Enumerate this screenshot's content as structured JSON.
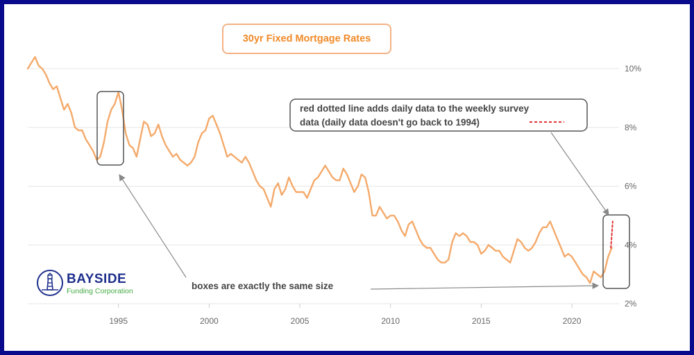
{
  "chart_data": {
    "type": "line",
    "title": "30yr Fixed Mortgage Rates",
    "x_ticks": [
      "1995",
      "2000",
      "2005",
      "2010",
      "2015",
      "2020"
    ],
    "y_ticks": [
      "2%",
      "4%",
      "6%",
      "8%",
      "10%"
    ],
    "xlim": [
      1990.0,
      2022.6
    ],
    "ylim": [
      2.0,
      10.0
    ],
    "grid": true,
    "series": [
      {
        "color": "#f4a96a",
        "points": [
          [
            1990.0,
            10.0
          ],
          [
            1990.2,
            10.2
          ],
          [
            1990.4,
            10.4
          ],
          [
            1990.6,
            10.1
          ],
          [
            1990.8,
            10.0
          ],
          [
            1991.0,
            9.8
          ],
          [
            1991.2,
            9.5
          ],
          [
            1991.4,
            9.3
          ],
          [
            1991.6,
            9.4
          ],
          [
            1991.8,
            9.0
          ],
          [
            1992.0,
            8.6
          ],
          [
            1992.2,
            8.8
          ],
          [
            1992.4,
            8.5
          ],
          [
            1992.6,
            8.0
          ],
          [
            1992.8,
            7.9
          ],
          [
            1993.0,
            7.9
          ],
          [
            1993.2,
            7.6
          ],
          [
            1993.4,
            7.4
          ],
          [
            1993.6,
            7.2
          ],
          [
            1993.8,
            6.9
          ],
          [
            1994.0,
            7.0
          ],
          [
            1994.2,
            7.5
          ],
          [
            1994.4,
            8.2
          ],
          [
            1994.6,
            8.6
          ],
          [
            1994.8,
            8.8
          ],
          [
            1995.0,
            9.2
          ],
          [
            1995.2,
            8.6
          ],
          [
            1995.4,
            7.8
          ],
          [
            1995.6,
            7.4
          ],
          [
            1995.8,
            7.3
          ],
          [
            1996.0,
            7.0
          ],
          [
            1996.2,
            7.6
          ],
          [
            1996.4,
            8.2
          ],
          [
            1996.6,
            8.1
          ],
          [
            1996.8,
            7.7
          ],
          [
            1997.0,
            7.8
          ],
          [
            1997.2,
            8.1
          ],
          [
            1997.4,
            7.7
          ],
          [
            1997.6,
            7.4
          ],
          [
            1997.8,
            7.2
          ],
          [
            1998.0,
            7.0
          ],
          [
            1998.2,
            7.1
          ],
          [
            1998.4,
            6.9
          ],
          [
            1998.6,
            6.8
          ],
          [
            1998.8,
            6.7
          ],
          [
            1999.0,
            6.8
          ],
          [
            1999.2,
            7.0
          ],
          [
            1999.4,
            7.5
          ],
          [
            1999.6,
            7.8
          ],
          [
            1999.8,
            7.9
          ],
          [
            2000.0,
            8.3
          ],
          [
            2000.2,
            8.4
          ],
          [
            2000.4,
            8.1
          ],
          [
            2000.6,
            7.8
          ],
          [
            2000.8,
            7.4
          ],
          [
            2001.0,
            7.0
          ],
          [
            2001.2,
            7.1
          ],
          [
            2001.4,
            7.0
          ],
          [
            2001.6,
            6.9
          ],
          [
            2001.8,
            6.8
          ],
          [
            2002.0,
            7.0
          ],
          [
            2002.2,
            6.8
          ],
          [
            2002.4,
            6.5
          ],
          [
            2002.6,
            6.2
          ],
          [
            2002.8,
            6.0
          ],
          [
            2003.0,
            5.9
          ],
          [
            2003.2,
            5.6
          ],
          [
            2003.4,
            5.3
          ],
          [
            2003.6,
            5.9
          ],
          [
            2003.8,
            6.1
          ],
          [
            2004.0,
            5.7
          ],
          [
            2004.2,
            5.9
          ],
          [
            2004.4,
            6.3
          ],
          [
            2004.6,
            6.0
          ],
          [
            2004.8,
            5.8
          ],
          [
            2005.0,
            5.8
          ],
          [
            2005.2,
            5.8
          ],
          [
            2005.4,
            5.6
          ],
          [
            2005.6,
            5.9
          ],
          [
            2005.8,
            6.2
          ],
          [
            2006.0,
            6.3
          ],
          [
            2006.2,
            6.5
          ],
          [
            2006.4,
            6.7
          ],
          [
            2006.6,
            6.5
          ],
          [
            2006.8,
            6.3
          ],
          [
            2007.0,
            6.2
          ],
          [
            2007.2,
            6.2
          ],
          [
            2007.4,
            6.6
          ],
          [
            2007.6,
            6.4
          ],
          [
            2007.8,
            6.1
          ],
          [
            2008.0,
            5.8
          ],
          [
            2008.2,
            6.0
          ],
          [
            2008.4,
            6.4
          ],
          [
            2008.6,
            6.3
          ],
          [
            2008.8,
            5.8
          ],
          [
            2009.0,
            5.0
          ],
          [
            2009.2,
            5.0
          ],
          [
            2009.4,
            5.3
          ],
          [
            2009.6,
            5.1
          ],
          [
            2009.8,
            4.9
          ],
          [
            2010.0,
            5.0
          ],
          [
            2010.2,
            5.0
          ],
          [
            2010.4,
            4.8
          ],
          [
            2010.6,
            4.5
          ],
          [
            2010.8,
            4.3
          ],
          [
            2011.0,
            4.7
          ],
          [
            2011.2,
            4.8
          ],
          [
            2011.4,
            4.5
          ],
          [
            2011.6,
            4.2
          ],
          [
            2011.8,
            4.0
          ],
          [
            2012.0,
            3.9
          ],
          [
            2012.2,
            3.9
          ],
          [
            2012.4,
            3.7
          ],
          [
            2012.6,
            3.5
          ],
          [
            2012.8,
            3.4
          ],
          [
            2013.0,
            3.4
          ],
          [
            2013.2,
            3.5
          ],
          [
            2013.4,
            4.1
          ],
          [
            2013.6,
            4.4
          ],
          [
            2013.8,
            4.3
          ],
          [
            2014.0,
            4.4
          ],
          [
            2014.2,
            4.3
          ],
          [
            2014.4,
            4.1
          ],
          [
            2014.6,
            4.1
          ],
          [
            2014.8,
            4.0
          ],
          [
            2015.0,
            3.7
          ],
          [
            2015.2,
            3.8
          ],
          [
            2015.4,
            4.0
          ],
          [
            2015.6,
            3.9
          ],
          [
            2015.8,
            3.8
          ],
          [
            2016.0,
            3.8
          ],
          [
            2016.2,
            3.6
          ],
          [
            2016.4,
            3.5
          ],
          [
            2016.6,
            3.4
          ],
          [
            2016.8,
            3.8
          ],
          [
            2017.0,
            4.2
          ],
          [
            2017.2,
            4.1
          ],
          [
            2017.4,
            3.9
          ],
          [
            2017.6,
            3.8
          ],
          [
            2017.8,
            3.9
          ],
          [
            2018.0,
            4.1
          ],
          [
            2018.2,
            4.4
          ],
          [
            2018.4,
            4.6
          ],
          [
            2018.6,
            4.6
          ],
          [
            2018.8,
            4.8
          ],
          [
            2019.0,
            4.5
          ],
          [
            2019.2,
            4.2
          ],
          [
            2019.4,
            3.9
          ],
          [
            2019.6,
            3.6
          ],
          [
            2019.8,
            3.7
          ],
          [
            2020.0,
            3.6
          ],
          [
            2020.2,
            3.4
          ],
          [
            2020.4,
            3.2
          ],
          [
            2020.6,
            3.0
          ],
          [
            2020.8,
            2.9
          ],
          [
            2021.0,
            2.7
          ],
          [
            2021.2,
            3.1
          ],
          [
            2021.4,
            3.0
          ],
          [
            2021.6,
            2.9
          ],
          [
            2021.8,
            3.1
          ],
          [
            2022.0,
            3.6
          ],
          [
            2022.2,
            3.9
          ]
        ]
      },
      {
        "color": "#e03131",
        "dashed": true,
        "points": [
          [
            2022.15,
            3.9
          ],
          [
            2022.25,
            4.8
          ]
        ]
      }
    ]
  },
  "annotations": {
    "callout": {
      "line1": "red dotted line adds daily data to the weekly survey",
      "line2": "data (daily data doesn't go back to 1994)",
      "marker_color": "#e03131"
    },
    "boxes_note": "boxes are exactly the same size"
  },
  "logo": {
    "name": "BAYSIDE",
    "subtitle": "Funding Corporation",
    "icon": "lighthouse-icon",
    "name_color": "#1e2f8c",
    "subtitle_color": "#44aa44"
  },
  "colors": {
    "frame": "#0a0a8c",
    "title_border": "#f4b183",
    "title_text": "#f08a28",
    "line": "#f4a96a"
  }
}
